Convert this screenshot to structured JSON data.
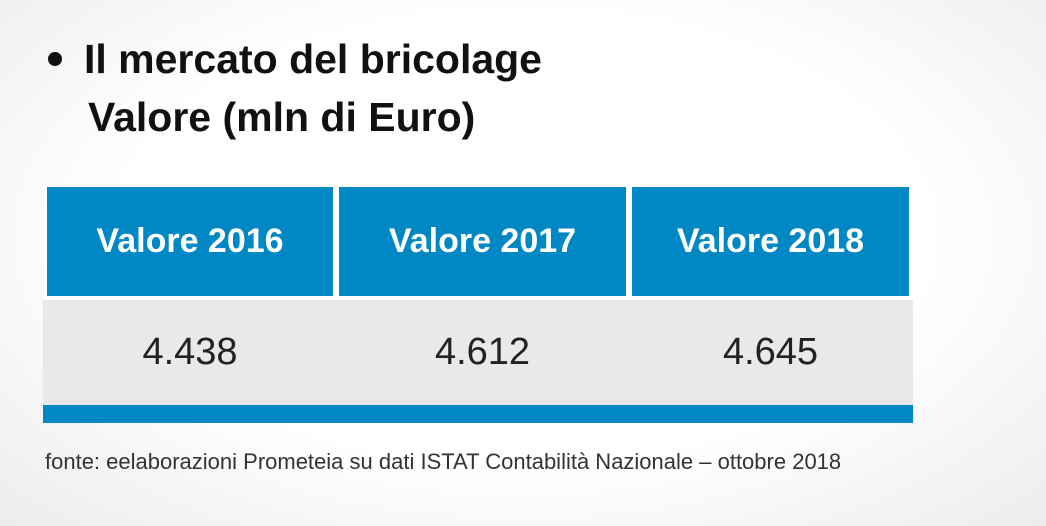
{
  "header": {
    "title": "Il mercato del bricolage",
    "subtitle": "Valore (mln di Euro)"
  },
  "table": {
    "columns": [
      "Valore 2016",
      "Valore 2017",
      "Valore 2018"
    ],
    "rows": [
      [
        "4.438",
        "4.612",
        "4.645"
      ]
    ]
  },
  "footer": {
    "source": "fonte: eelaborazioni Prometeia su dati ISTAT Contabilità Nazionale – ottobre 2018"
  }
}
